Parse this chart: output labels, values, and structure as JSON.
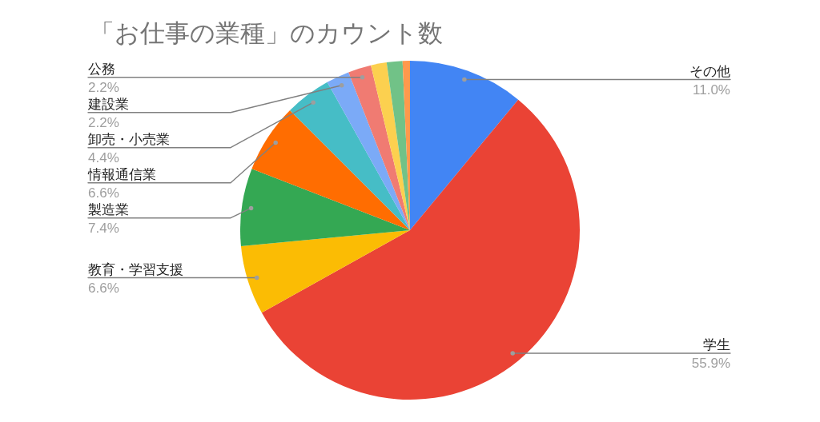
{
  "chart_data": {
    "type": "pie",
    "title": "「お仕事の業種」のカウント数",
    "categories": [
      "その他",
      "学生",
      "教育・学習支援",
      "製造業",
      "情報通信業",
      "卸売・小売業",
      "建設業",
      "公務",
      null,
      null,
      null
    ],
    "values": [
      11.0,
      55.9,
      6.6,
      7.4,
      6.6,
      4.4,
      2.2,
      2.2,
      1.5,
      1.5,
      0.7
    ],
    "value_labels": [
      "11.0%",
      "55.9%",
      "6.6%",
      "7.4%",
      "6.6%",
      "4.4%",
      "2.2%",
      "2.2%",
      null,
      null,
      null
    ],
    "colors": [
      "#4285f4",
      "#ea4335",
      "#fbbc04",
      "#34a853",
      "#ff6d01",
      "#46bdc6",
      "#7baaf7",
      "#f07b72",
      "#fcd04f",
      "#71c287",
      "#ff994d"
    ]
  }
}
